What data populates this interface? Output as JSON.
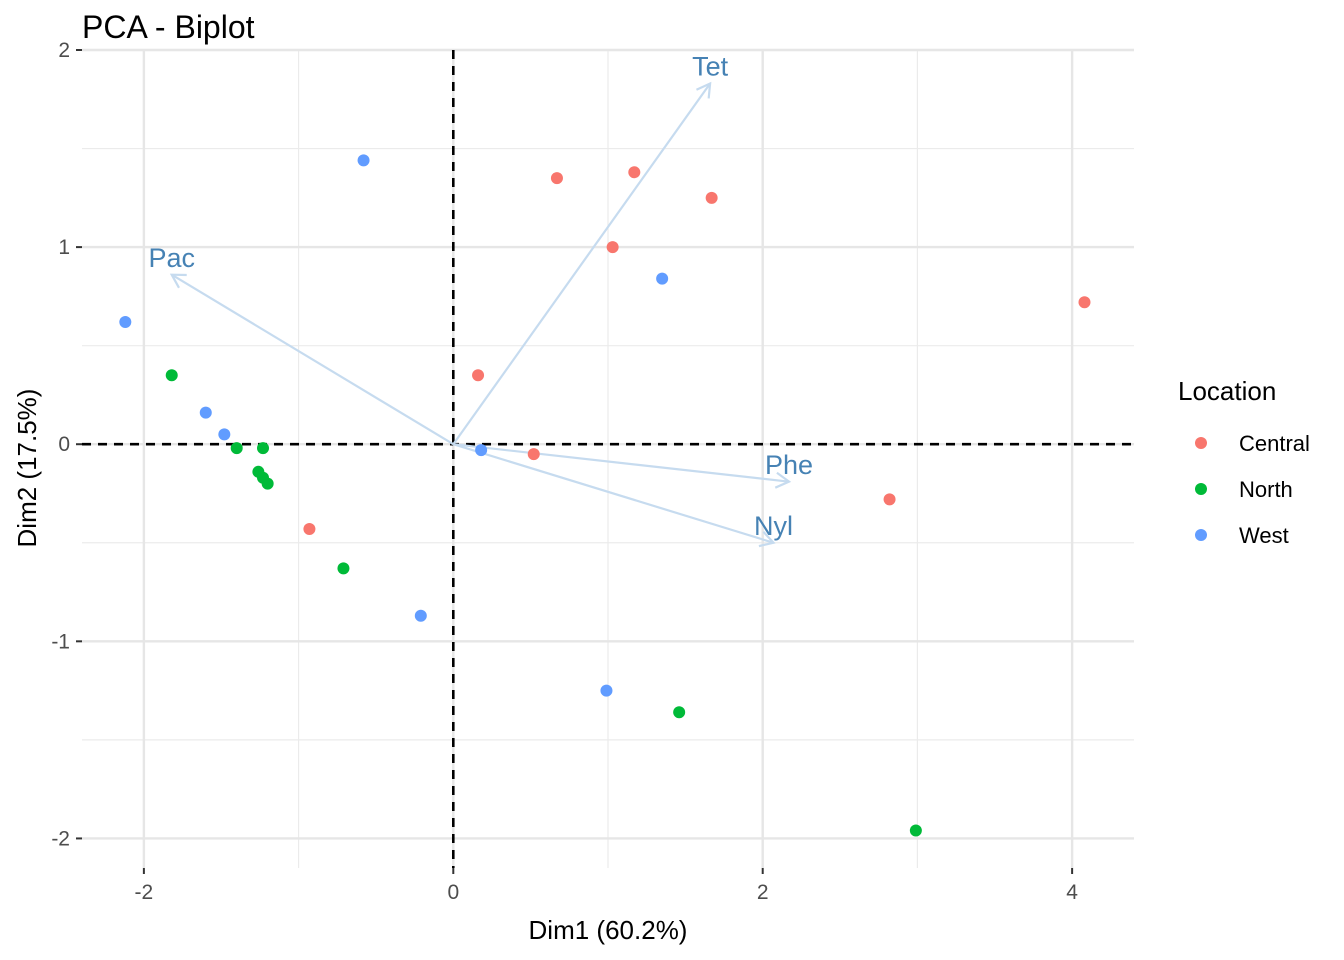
{
  "chart_data": {
    "type": "scatter",
    "title": "PCA - Biplot",
    "xlabel": "Dim1 (60.2%)",
    "ylabel": "Dim2 (17.5%)",
    "xlim": [
      -2.4,
      4.4
    ],
    "ylim": [
      -2.15,
      2.0
    ],
    "x_ticks": [
      -2,
      0,
      2,
      4
    ],
    "y_ticks": [
      -2,
      -1,
      0,
      1,
      2
    ],
    "x_tick_labels": [
      "-2",
      "0",
      "2",
      "4"
    ],
    "y_tick_labels": [
      "-2",
      "-1",
      "0",
      "1",
      "2"
    ],
    "grid": true,
    "reference_lines": "dashed at x=0 and y=0",
    "legend": {
      "title": "Location",
      "placement": "right",
      "entries": [
        "Central",
        "North",
        "West"
      ]
    },
    "colors": {
      "Central": "#f8766d",
      "North": "#00ba38",
      "West": "#619cff",
      "variable_arrows": "#c6dbef",
      "variable_labels": "#4682b4"
    },
    "series": [
      {
        "name": "Central",
        "points": [
          {
            "x": 0.67,
            "y": 1.35
          },
          {
            "x": 1.17,
            "y": 1.38
          },
          {
            "x": 1.67,
            "y": 1.25
          },
          {
            "x": 1.03,
            "y": 1.0
          },
          {
            "x": 4.08,
            "y": 0.72
          },
          {
            "x": 0.16,
            "y": 0.35
          },
          {
            "x": 0.52,
            "y": -0.05
          },
          {
            "x": 2.82,
            "y": -0.28
          },
          {
            "x": -0.93,
            "y": -0.43
          }
        ]
      },
      {
        "name": "North",
        "points": [
          {
            "x": -1.82,
            "y": 0.35
          },
          {
            "x": -1.4,
            "y": -0.02
          },
          {
            "x": -1.23,
            "y": -0.02
          },
          {
            "x": -1.26,
            "y": -0.14
          },
          {
            "x": -1.23,
            "y": -0.17
          },
          {
            "x": -1.2,
            "y": -0.2
          },
          {
            "x": -0.71,
            "y": -0.63
          },
          {
            "x": 1.46,
            "y": -1.36
          },
          {
            "x": 2.99,
            "y": -1.96
          }
        ]
      },
      {
        "name": "West",
        "points": [
          {
            "x": -0.58,
            "y": 1.44
          },
          {
            "x": 1.35,
            "y": 0.84
          },
          {
            "x": -2.12,
            "y": 0.62
          },
          {
            "x": -1.6,
            "y": 0.16
          },
          {
            "x": -1.48,
            "y": 0.05
          },
          {
            "x": 0.18,
            "y": -0.03
          },
          {
            "x": -0.21,
            "y": -0.87
          },
          {
            "x": 0.99,
            "y": -1.25
          }
        ]
      }
    ],
    "variables": [
      {
        "name": "Tet",
        "x": 1.66,
        "y": 1.83,
        "label_x": 1.66,
        "label_y": 1.87
      },
      {
        "name": "Pac",
        "x": -1.82,
        "y": 0.86,
        "label_x": -1.82,
        "label_y": 0.9
      },
      {
        "name": "Phe",
        "x": 2.17,
        "y": -0.19,
        "label_x": 2.17,
        "label_y": -0.15
      },
      {
        "name": "Nyl",
        "x": 2.07,
        "y": -0.5,
        "label_x": 2.07,
        "label_y": -0.46
      }
    ]
  }
}
